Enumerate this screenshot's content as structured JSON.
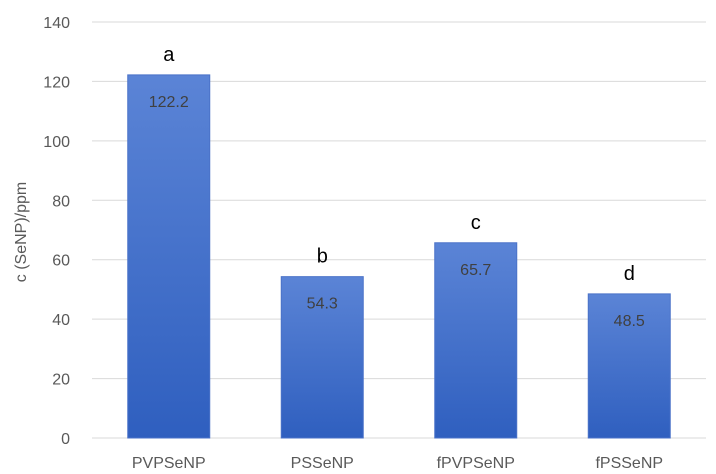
{
  "chart_data": {
    "type": "bar",
    "title": "",
    "xlabel": "",
    "ylabel": "c (SeNP)/ppm",
    "ylim": [
      0,
      140
    ],
    "yticks": [
      0,
      20,
      40,
      60,
      80,
      100,
      120,
      140
    ],
    "categories": [
      "PVPSeNP",
      "PSSeNP",
      "fPVPSeNP",
      "fPSSeNP"
    ],
    "values": [
      122.2,
      54.3,
      65.7,
      48.5
    ],
    "value_labels": [
      "122.2",
      "54.3",
      "65.7",
      "48.5"
    ],
    "significance_letters": [
      "a",
      "b",
      "c",
      "d"
    ],
    "grid": true,
    "legend": "none",
    "colors": {
      "bar_top": "#5b84d6",
      "bar_bottom": "#2f5fbf",
      "grid": "#d9d9d9"
    }
  }
}
